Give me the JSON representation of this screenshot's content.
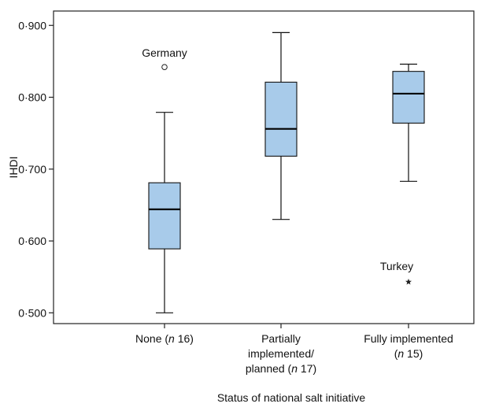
{
  "chart_data": {
    "type": "boxplot",
    "ylabel": "IHDI",
    "xlabel": "Status of national salt initiative",
    "ylim": [
      0.485,
      0.92
    ],
    "yticks": [
      0.5,
      0.6,
      0.7,
      0.8,
      0.9
    ],
    "ytick_labels": [
      "0·500",
      "0·600",
      "0·700",
      "0·800",
      "0·900"
    ],
    "grid": false,
    "box_color": "#a8cbea",
    "categories": [
      {
        "label_parts": [
          "None (",
          "n",
          " 16)"
        ]
      },
      {
        "label_lines": [
          "Partially",
          "implemented/"
        ],
        "label_parts": [
          "planned (",
          "n",
          " 17)"
        ]
      },
      {
        "label_lines": [
          "Fully implemented"
        ],
        "label_parts": [
          "(",
          "n",
          " 15)"
        ]
      }
    ],
    "boxes": [
      {
        "whisker_low": 0.5,
        "q1": 0.589,
        "median": 0.644,
        "q3": 0.681,
        "whisker_high": 0.779
      },
      {
        "whisker_low": 0.63,
        "q1": 0.718,
        "median": 0.756,
        "q3": 0.821,
        "whisker_high": 0.89
      },
      {
        "whisker_low": 0.683,
        "q1": 0.764,
        "median": 0.805,
        "q3": 0.836,
        "whisker_high": 0.846
      }
    ],
    "outliers": [
      {
        "category": 0,
        "value": 0.842,
        "marker": "circle",
        "label": "Germany"
      },
      {
        "category": 2,
        "value": 0.543,
        "marker": "star",
        "label": "Turkey"
      }
    ]
  }
}
